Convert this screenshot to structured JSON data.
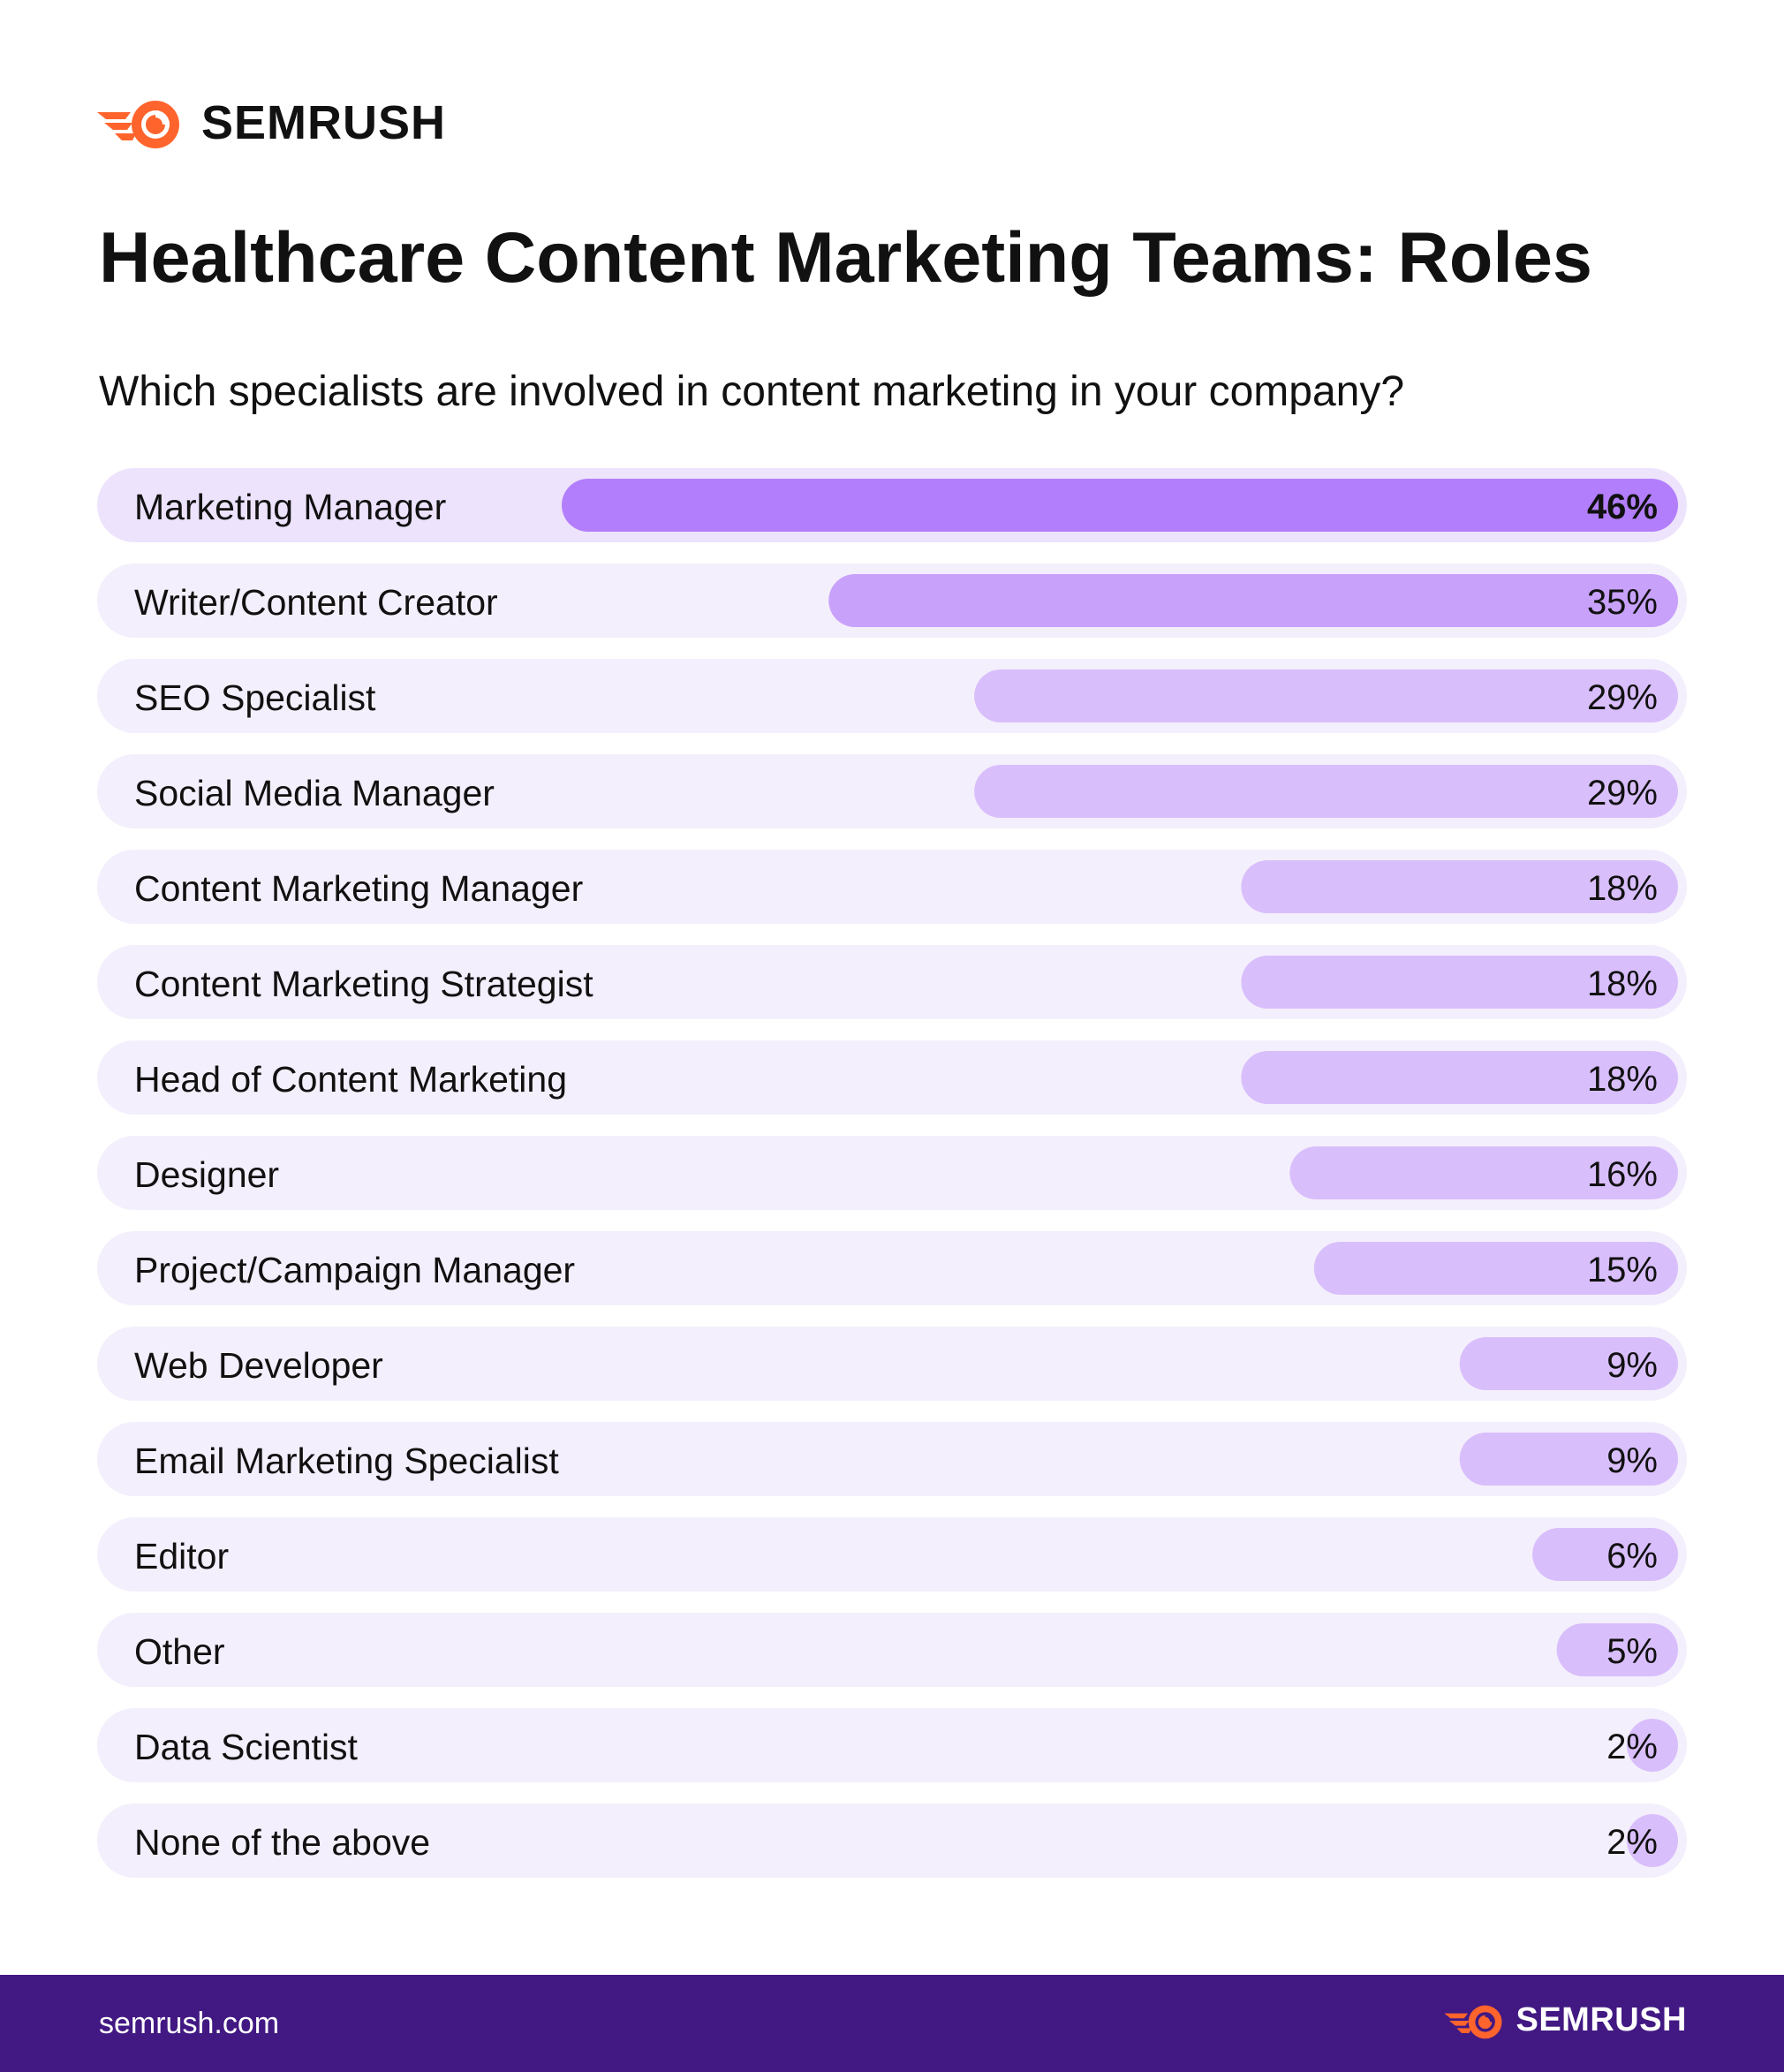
{
  "brand": {
    "logo_text": "SEMRUSH",
    "footer_url": "semrush.com",
    "footer_logo_text": "SEMRUSH"
  },
  "colors": {
    "logo_orange": "#FF642D",
    "row_background": "#F4EFFC",
    "row_highlight_background": "#EDE3FC",
    "bar_top": "#B37EFB",
    "bar_mid": "#C8A1FB",
    "bar_light": "#D9BEFC",
    "footer_background": "#421983"
  },
  "chart_data": {
    "type": "bar",
    "orientation": "horizontal",
    "title": "Healthcare Content Marketing Teams: Roles",
    "subtitle": "Which specialists are involved in content marketing in your company?",
    "categories": [
      "Marketing Manager",
      "Writer/Content Creator",
      "SEO Specialist",
      "Social Media Manager",
      "Content Marketing Manager",
      "Content Marketing Strategist",
      "Head of Content Marketing",
      "Designer",
      "Project/Campaign Manager",
      "Web Developer",
      "Email Marketing Specialist",
      "Editor",
      "Other",
      "Data Scientist",
      "None of the above"
    ],
    "values": [
      46,
      35,
      29,
      29,
      18,
      18,
      18,
      16,
      15,
      9,
      9,
      6,
      5,
      2,
      2
    ],
    "value_labels": [
      "46%",
      "35%",
      "29%",
      "29%",
      "18%",
      "18%",
      "18%",
      "16%",
      "15%",
      "9%",
      "9%",
      "6%",
      "5%",
      "2%",
      "2%"
    ],
    "unit": "%",
    "bars_anchor": "right",
    "grid": false,
    "legend": "none"
  }
}
